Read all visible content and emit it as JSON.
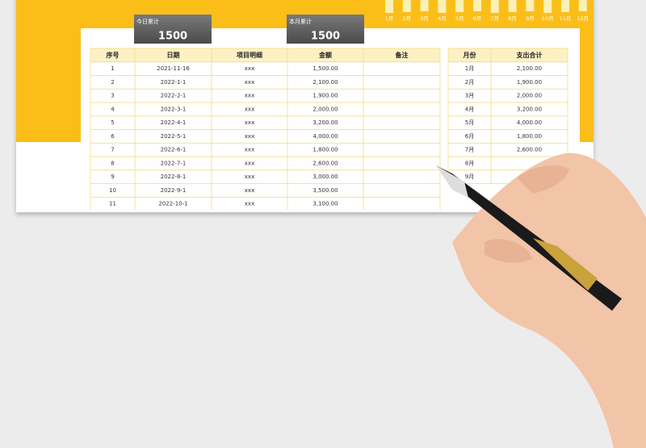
{
  "header": {
    "cards": [
      {
        "label": "今日累计",
        "value": "1500"
      },
      {
        "label": "本月累计",
        "value": "1500"
      }
    ],
    "months": [
      "1月",
      "2月",
      "3月",
      "4月",
      "5月",
      "6月",
      "7月",
      "8月",
      "9月",
      "10月",
      "11月",
      "12月"
    ]
  },
  "table": {
    "columns": [
      "序号",
      "日期",
      "项目明细",
      "金额",
      "备注"
    ],
    "rows": [
      [
        "1",
        "2021-11-16",
        "xxx",
        "1,500.00"
      ],
      [
        "2",
        "2022-1-1",
        "xxx",
        "2,100.00"
      ],
      [
        "3",
        "2022-2-1",
        "xxx",
        "1,900.00"
      ],
      [
        "4",
        "2022-3-1",
        "xxx",
        "2,000.00"
      ],
      [
        "5",
        "2022-4-1",
        "xxx",
        "3,200.00"
      ],
      [
        "6",
        "2022-5-1",
        "xxx",
        "4,000.00"
      ],
      [
        "7",
        "2022-6-1",
        "xxx",
        "1,800.00"
      ],
      [
        "8",
        "2022-7-1",
        "xxx",
        "2,600.00"
      ],
      [
        "9",
        "2022-8-1",
        "xxx",
        "3,000.00"
      ],
      [
        "10",
        "2022-9-1",
        "xxx",
        "3,500.00"
      ],
      [
        "11",
        "2022-10-1",
        "xxx",
        "3,100.00"
      ]
    ]
  },
  "month_table": {
    "columns": [
      "月份",
      "支出合计"
    ],
    "rows": [
      [
        "1月",
        "2,100.00"
      ],
      [
        "2月",
        "1,900.00"
      ],
      [
        "3月",
        "2,000.00"
      ],
      [
        "4月",
        "3,200.00"
      ],
      [
        "5月",
        "4,000.00"
      ],
      [
        "6月",
        "1,800.00"
      ],
      [
        "7月",
        "2,600.00"
      ],
      [
        "8月"
      ],
      [
        "9月"
      ]
    ]
  }
}
